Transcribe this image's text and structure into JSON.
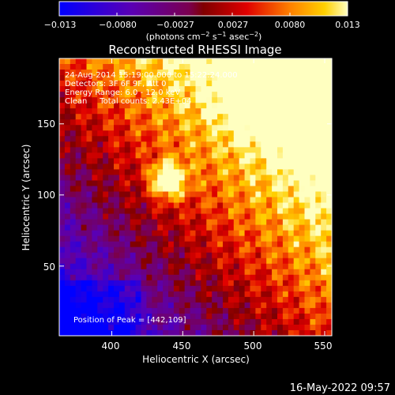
{
  "colorbar": {
    "ticks": [
      "−0.013",
      "−0.0080",
      "−0.0027",
      "0.0027",
      "0.0080",
      "0.013"
    ],
    "units": "(photons cm",
    "units_exp1": "−2",
    "units_mid": " s",
    "units_exp2": "−1",
    "units_mid2": " asec",
    "units_exp3": "−2",
    "units_end": ")"
  },
  "chart_data": {
    "type": "heatmap",
    "title": "Reconstructed RHESSI Image",
    "xlabel": "Heliocentric X (arcsec)",
    "ylabel": "Heliocentric Y (arcsec)",
    "xlim": [
      363,
      555
    ],
    "ylim": [
      1,
      196
    ],
    "xticks": [
      400,
      450,
      500,
      550
    ],
    "yticks": [
      50,
      100,
      150
    ],
    "colorbar_range": [
      -0.013,
      0.013
    ],
    "annotations": [
      "24-Aug-2014 15:19:00.000 to 15:22:24.000",
      "Detectors: 3F 6F 9F, Att 0",
      "Energy Range: 6.0 - 12.0 keV",
      "Clean     Total counts: 2.43E+04"
    ],
    "peak_label": "Position of Peak = [442,109]",
    "peak": [
      442,
      109
    ],
    "footer_date": "16-May-2022 09:57"
  }
}
